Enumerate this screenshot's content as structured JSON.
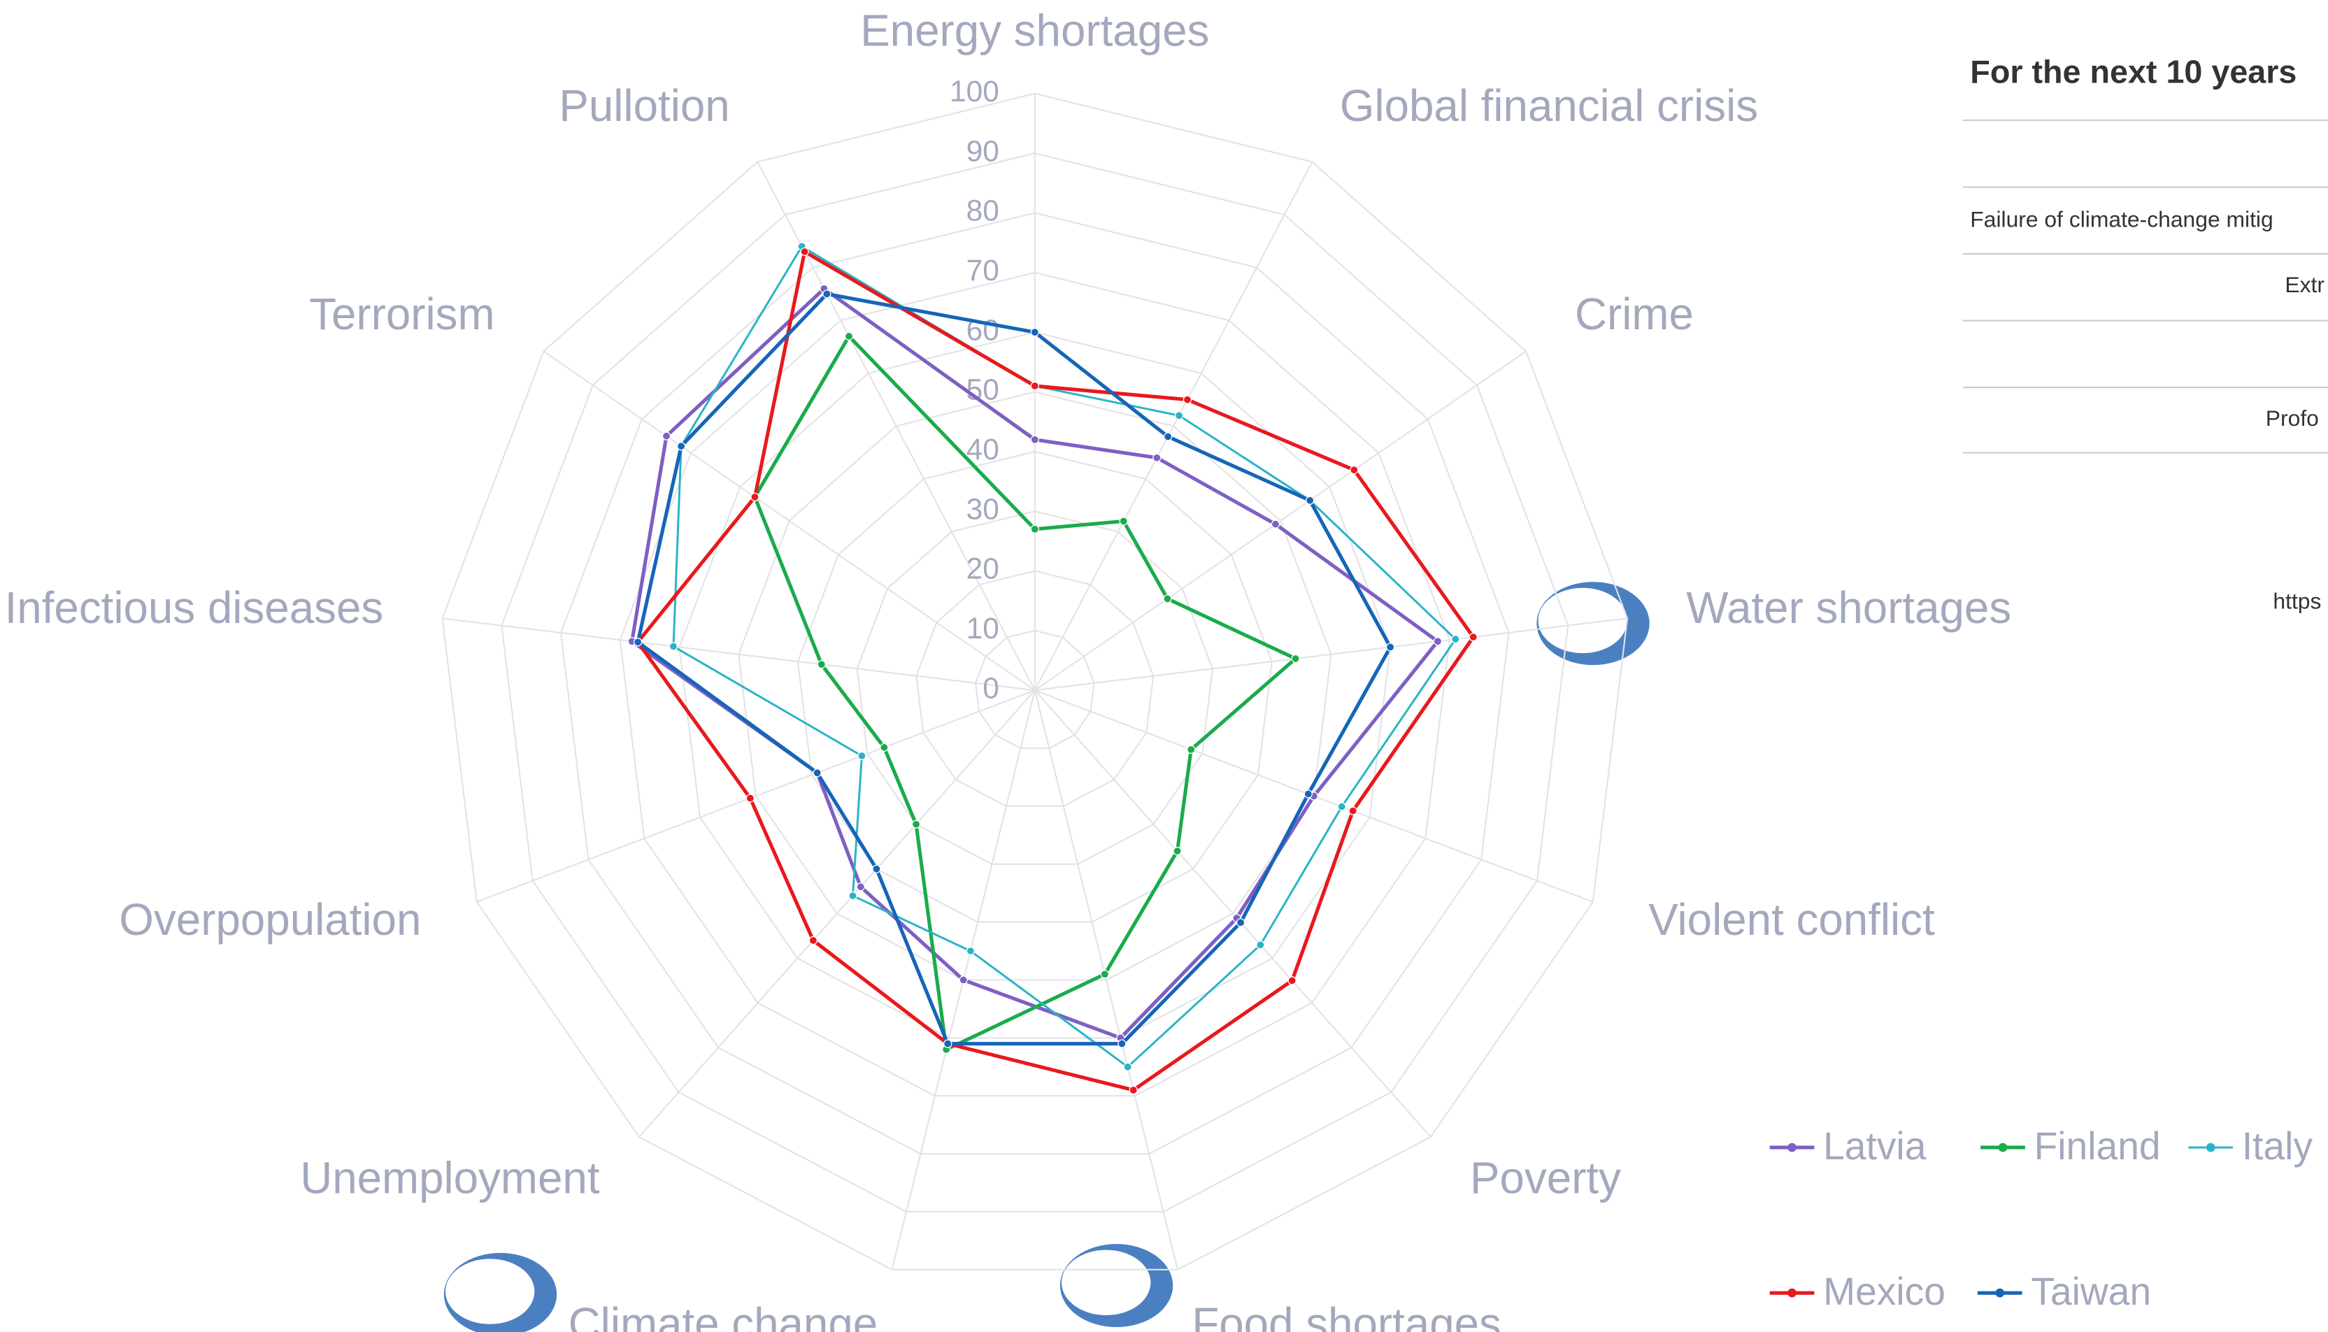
{
  "chart_data": {
    "type": "radar",
    "categories": [
      "Energy shortages",
      "Global financial crisis",
      "Crime",
      "Water shortages",
      "Violent conflict",
      "Poverty",
      "Food shortages",
      "Climate change",
      "Unemployment",
      "Overpopulation",
      "Infectious diseases",
      "Terrorism",
      "Pullotion"
    ],
    "rlim": [
      0,
      100
    ],
    "rticks": [
      0,
      10,
      20,
      30,
      40,
      50,
      60,
      70,
      80,
      90,
      100
    ],
    "grid": true,
    "legend": "bottom-right",
    "series": [
      {
        "name": "Latvia",
        "color": "#7e5fc4",
        "values": [
          42,
          44,
          49,
          68,
          50,
          51,
          60,
          50,
          44,
          39,
          68,
          75,
          76
        ]
      },
      {
        "name": "Finland",
        "color": "#1aab4a",
        "values": [
          27,
          32,
          27,
          44,
          28,
          36,
          49,
          62,
          30,
          27,
          36,
          57,
          67
        ]
      },
      {
        "name": "Italy",
        "color": "#2ab3c8",
        "values": [
          51,
          52,
          56,
          71,
          55,
          57,
          65,
          45,
          46,
          31,
          61,
          72,
          84
        ]
      },
      {
        "name": "Mexico",
        "color": "#e8191c",
        "values": [
          51,
          55,
          65,
          74,
          57,
          65,
          69,
          61,
          56,
          51,
          67,
          57,
          83
        ]
      },
      {
        "name": "Taiwan",
        "color": "#1565b8",
        "values": [
          60,
          48,
          56,
          60,
          49,
          52,
          61,
          61,
          40,
          39,
          67,
          72,
          75
        ]
      }
    ]
  },
  "side_panel": {
    "title": "For the next 10 years",
    "rows": [
      "Failure of climate-change mitig",
      "Extr",
      "Profo"
    ],
    "link": "https"
  }
}
